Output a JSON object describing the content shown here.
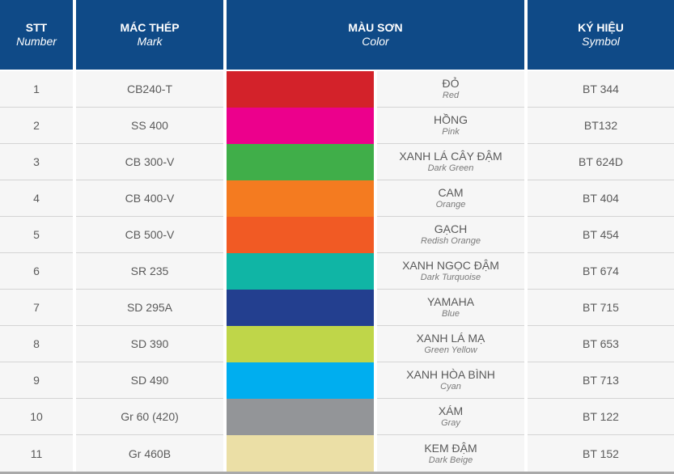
{
  "header": {
    "stt": {
      "vi": "STT",
      "en": "Number"
    },
    "mark": {
      "vi": "MÁC THÉP",
      "en": "Mark"
    },
    "color": {
      "vi": "MÀU SƠN",
      "en": "Color"
    },
    "symbol": {
      "vi": "KÝ HIỆU",
      "en": "Symbol"
    }
  },
  "rows": [
    {
      "no": "1",
      "mark": "CB240-T",
      "hex": "#d3222a",
      "vi": "ĐỎ",
      "en": "Red",
      "symbol": "BT 344"
    },
    {
      "no": "2",
      "mark": "SS 400",
      "hex": "#ec008c",
      "vi": "HỒNG",
      "en": "Pink",
      "symbol": "BT132"
    },
    {
      "no": "3",
      "mark": "CB 300-V",
      "hex": "#40ae49",
      "vi": "XANH LÁ CÂY ĐẬM",
      "en": "Dark Green",
      "symbol": "BT 624D"
    },
    {
      "no": "4",
      "mark": "CB 400-V",
      "hex": "#f47b20",
      "vi": "CAM",
      "en": "Orange",
      "symbol": "BT 404"
    },
    {
      "no": "5",
      "mark": "CB 500-V",
      "hex": "#f15a24",
      "vi": "GẠCH",
      "en": "Redish Orange",
      "symbol": "BT 454"
    },
    {
      "no": "6",
      "mark": "SR 235",
      "hex": "#10b5a5",
      "vi": "XANH NGỌC ĐẬM",
      "en": "Dark Turquoise",
      "symbol": "BT 674"
    },
    {
      "no": "7",
      "mark": "SD 295A",
      "hex": "#233f8f",
      "vi": "YAMAHA",
      "en": "Blue",
      "symbol": "BT 715"
    },
    {
      "no": "8",
      "mark": "SD 390",
      "hex": "#bfd649",
      "vi": "XANH LÁ MẠ",
      "en": "Green Yellow",
      "symbol": "BT 653"
    },
    {
      "no": "9",
      "mark": "SD 490",
      "hex": "#00aeef",
      "vi": "XANH HÒA BÌNH",
      "en": "Cyan",
      "symbol": "BT 713"
    },
    {
      "no": "10",
      "mark": "Gr 60 (420)",
      "hex": "#939598",
      "vi": "XÁM",
      "en": "Gray",
      "symbol": "BT 122"
    },
    {
      "no": "11",
      "mark": "Gr 460B",
      "hex": "#ebdfa6",
      "vi": "KEM ĐẬM",
      "en": "Dark Beige",
      "symbol": "BT 152"
    }
  ]
}
